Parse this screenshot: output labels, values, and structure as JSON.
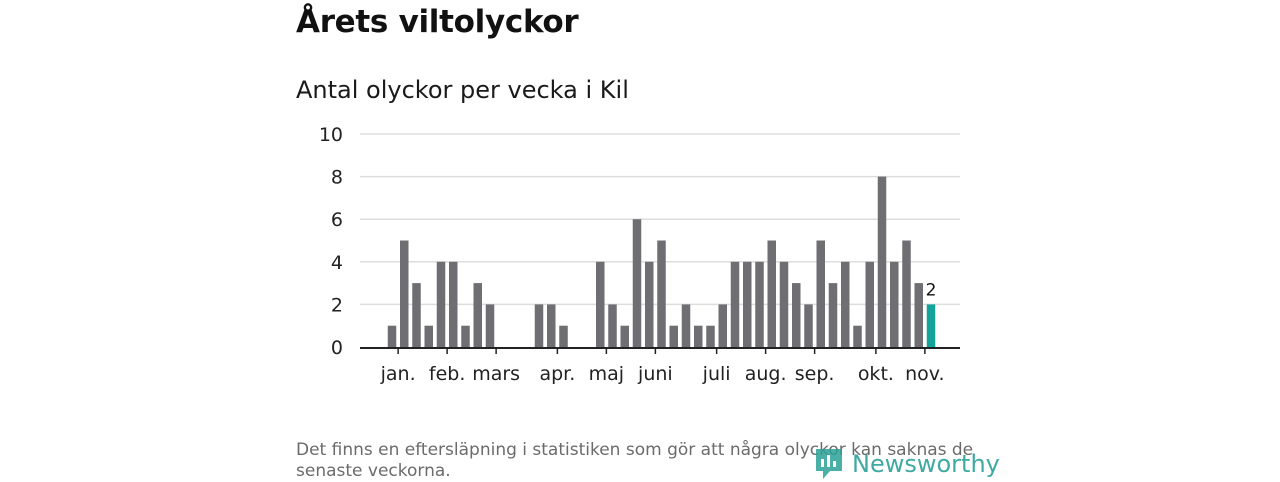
{
  "page": {
    "title": "Årets viltolyckor",
    "footnote": "Det finns en eftersläpning i statistiken som gör att några olyckor kan saknas de senaste veckorna.",
    "brand": "Newsworthy"
  },
  "colors": {
    "bar": "#6e6e73",
    "highlight": "#14a39a",
    "grid": "#dddddd",
    "axis": "#222222",
    "brand": "#2aa198"
  },
  "chart_data": {
    "type": "bar",
    "title": "Antal olyckor per vecka i Kil",
    "ylim": [
      0,
      10
    ],
    "yticks": [
      0,
      2,
      4,
      6,
      8,
      10
    ],
    "weeks": [
      1,
      2,
      3,
      4,
      5,
      6,
      7,
      8,
      9,
      10,
      11,
      12,
      13,
      14,
      15,
      16,
      17,
      18,
      19,
      20,
      21,
      22,
      23,
      24,
      25,
      26,
      27,
      28,
      29,
      30,
      31,
      32,
      33,
      34,
      35,
      36,
      37,
      38,
      39,
      40,
      41,
      42,
      43,
      44,
      45
    ],
    "values": [
      1,
      5,
      3,
      1,
      4,
      4,
      1,
      3,
      2,
      0,
      0,
      0,
      2,
      2,
      1,
      0,
      0,
      4,
      2,
      1,
      6,
      4,
      5,
      1,
      2,
      1,
      1,
      2,
      4,
      4,
      4,
      5,
      4,
      3,
      2,
      5,
      3,
      4,
      1,
      4,
      8,
      4,
      5,
      3,
      2
    ],
    "highlight_index": 44,
    "highlight_label": "2",
    "months": [
      {
        "label": "jan.",
        "week": 1.5
      },
      {
        "label": "feb.",
        "week": 5.5
      },
      {
        "label": "mars",
        "week": 9.5
      },
      {
        "label": "apr.",
        "week": 14.5
      },
      {
        "label": "maj",
        "week": 18.5
      },
      {
        "label": "juni",
        "week": 22.5
      },
      {
        "label": "juli",
        "week": 27.5
      },
      {
        "label": "aug.",
        "week": 31.5
      },
      {
        "label": "sep.",
        "week": 35.5
      },
      {
        "label": "okt.",
        "week": 40.5
      },
      {
        "label": "nov.",
        "week": 44.5
      }
    ],
    "grid": true,
    "legend": "none"
  }
}
